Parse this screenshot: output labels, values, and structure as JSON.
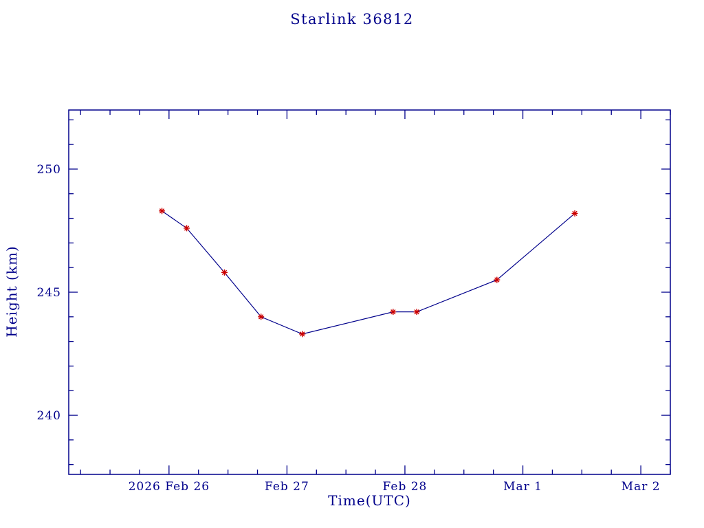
{
  "chart_data": {
    "type": "line",
    "title": "Starlink 36812",
    "xlabel": "Time(UTC)",
    "ylabel": "Height (km)",
    "x_unit": "days since 2026 Feb 26 00:00 UTC",
    "series": [
      {
        "name": "height",
        "x": [
          -0.06,
          0.15,
          0.47,
          0.78,
          1.13,
          1.9,
          2.1,
          2.78,
          3.44
        ],
        "y": [
          248.3,
          247.6,
          245.8,
          244.0,
          243.3,
          244.2,
          244.2,
          245.5,
          248.2
        ]
      }
    ],
    "x_ticks": [
      {
        "v": 0,
        "label": "2026 Feb 26"
      },
      {
        "v": 1,
        "label": "Feb 27"
      },
      {
        "v": 2,
        "label": "Feb 28"
      },
      {
        "v": 3,
        "label": "Mar 1"
      },
      {
        "v": 4,
        "label": "Mar 2"
      }
    ],
    "y_ticks": [
      {
        "v": 240,
        "label": "240"
      },
      {
        "v": 245,
        "label": "245"
      },
      {
        "v": 250,
        "label": "250"
      }
    ],
    "xlim": [
      -0.85,
      4.25
    ],
    "ylim": [
      237.6,
      252.4
    ],
    "x_minor_step": 0.25,
    "y_minor_step": 1,
    "grid": false,
    "legend": "none",
    "marker_style": "asterisk",
    "colors": {
      "text": "#00008b",
      "axis": "#00008b",
      "line": "#00008b",
      "marker": "#cc0000"
    }
  }
}
